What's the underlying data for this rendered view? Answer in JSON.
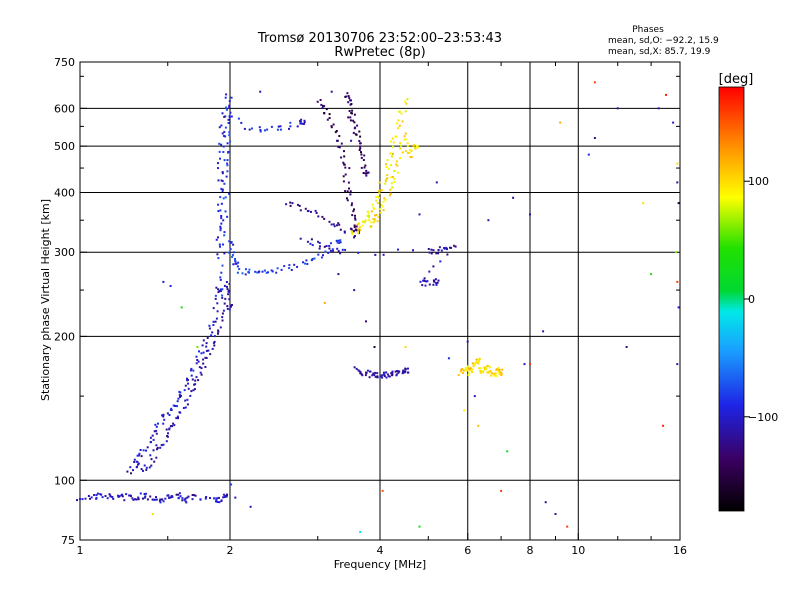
{
  "chart_data": {
    "type": "scatter",
    "title": "Tromsø 20130706 23:52:00–23:53:43",
    "subtitle": "RwPretec (8p)",
    "xlabel": "Frequency [MHz]",
    "ylabel": "Stationary phase Virtual Height [km]",
    "x_scale": "log",
    "y_scale": "log",
    "xlim": [
      1,
      16
    ],
    "ylim": [
      75,
      750
    ],
    "x_ticks": [
      "1",
      "2",
      "4",
      "6",
      "8",
      "10",
      "16"
    ],
    "y_ticks": [
      "75",
      "100",
      "200",
      "300",
      "400",
      "500",
      "600",
      "750"
    ],
    "x_grid": [
      2,
      4,
      6,
      8,
      10
    ],
    "y_grid": [
      100,
      200,
      300,
      400,
      500,
      600
    ],
    "grid": true,
    "info": {
      "heading": "Phases",
      "line1": "mean, sd,O: −92.2, 15.9",
      "line2": "mean, sd,X:  85.7, 19.9"
    },
    "colorbar": {
      "label": "[deg]",
      "range": [
        -180,
        180
      ],
      "ticks": [
        "100",
        "0",
        "−100"
      ],
      "tick_values": [
        100,
        0,
        -100
      ]
    },
    "traces": [
      {
        "phase": -105,
        "points": [
          [
            1.0,
            92
          ],
          [
            1.05,
            92
          ],
          [
            1.1,
            93
          ],
          [
            1.15,
            92
          ],
          [
            1.2,
            93
          ],
          [
            1.25,
            92
          ],
          [
            1.3,
            92
          ],
          [
            1.35,
            93
          ],
          [
            1.4,
            92
          ],
          [
            1.45,
            91
          ],
          [
            1.5,
            92
          ],
          [
            1.55,
            93
          ],
          [
            1.6,
            92
          ],
          [
            1.65,
            91
          ],
          [
            1.7,
            92
          ],
          [
            1.85,
            92
          ],
          [
            1.9,
            91
          ],
          [
            1.95,
            92
          ]
        ]
      },
      {
        "phase": -110,
        "points": [
          [
            1.25,
            104
          ],
          [
            1.3,
            108
          ],
          [
            1.35,
            105
          ],
          [
            1.4,
            112
          ],
          [
            1.45,
            118
          ],
          [
            1.5,
            125
          ],
          [
            1.55,
            132
          ],
          [
            1.6,
            140
          ],
          [
            1.65,
            150
          ],
          [
            1.7,
            160
          ],
          [
            1.75,
            170
          ],
          [
            1.8,
            180
          ],
          [
            1.85,
            195
          ],
          [
            1.9,
            210
          ],
          [
            1.95,
            240
          ],
          [
            1.98,
            260
          ],
          [
            2.0,
            230
          ]
        ]
      },
      {
        "phase": -100,
        "points": [
          [
            1.28,
            110
          ],
          [
            1.33,
            114
          ],
          [
            1.38,
            120
          ],
          [
            1.42,
            128
          ],
          [
            1.47,
            134
          ],
          [
            1.52,
            140
          ],
          [
            1.57,
            148
          ],
          [
            1.62,
            156
          ],
          [
            1.67,
            164
          ],
          [
            1.72,
            176
          ],
          [
            1.77,
            188
          ],
          [
            1.82,
            205
          ],
          [
            1.87,
            220
          ],
          [
            1.9,
            250
          ]
        ]
      },
      {
        "phase": -85,
        "points": [
          [
            1.9,
            240
          ],
          [
            1.92,
            280
          ],
          [
            1.93,
            330
          ],
          [
            1.94,
            380
          ],
          [
            1.95,
            430
          ],
          [
            1.96,
            480
          ],
          [
            1.97,
            540
          ],
          [
            1.98,
            600
          ],
          [
            1.99,
            640
          ],
          [
            2.0,
            320
          ],
          [
            2.02,
            300
          ],
          [
            2.05,
            285
          ],
          [
            2.1,
            275
          ],
          [
            2.2,
            272
          ],
          [
            2.35,
            272
          ],
          [
            2.5,
            275
          ],
          [
            2.7,
            280
          ],
          [
            2.9,
            290
          ],
          [
            3.1,
            300
          ],
          [
            3.3,
            315
          ]
        ]
      },
      {
        "phase": -95,
        "points": [
          [
            1.88,
            300
          ],
          [
            1.9,
            350
          ],
          [
            1.91,
            410
          ],
          [
            1.92,
            470
          ],
          [
            1.93,
            530
          ],
          [
            1.94,
            590
          ],
          [
            2.2,
            540
          ],
          [
            2.4,
            545
          ],
          [
            2.6,
            550
          ],
          [
            2.8,
            560
          ]
        ]
      },
      {
        "phase": -120,
        "points": [
          [
            2.6,
            380
          ],
          [
            2.8,
            370
          ],
          [
            3.0,
            360
          ],
          [
            3.2,
            345
          ],
          [
            3.4,
            335
          ],
          [
            3.6,
            330
          ]
        ]
      },
      {
        "phase": -140,
        "points": [
          [
            3.0,
            620
          ],
          [
            3.1,
            600
          ],
          [
            3.2,
            560
          ],
          [
            3.3,
            520
          ],
          [
            3.35,
            480
          ],
          [
            3.4,
            440
          ],
          [
            3.45,
            400
          ],
          [
            3.5,
            370
          ],
          [
            3.55,
            340
          ],
          [
            3.6,
            320
          ],
          [
            3.4,
            640
          ],
          [
            3.45,
            620
          ],
          [
            3.5,
            590
          ],
          [
            3.55,
            560
          ],
          [
            3.6,
            530
          ],
          [
            3.65,
            500
          ],
          [
            3.7,
            470
          ],
          [
            3.75,
            440
          ]
        ]
      },
      {
        "phase": 95,
        "points": [
          [
            3.5,
            330
          ],
          [
            3.6,
            335
          ],
          [
            3.7,
            345
          ],
          [
            3.8,
            360
          ],
          [
            3.9,
            380
          ],
          [
            4.0,
            400
          ],
          [
            4.1,
            430
          ],
          [
            4.2,
            470
          ],
          [
            4.3,
            520
          ],
          [
            4.4,
            580
          ],
          [
            4.5,
            620
          ],
          [
            3.8,
            340
          ],
          [
            3.9,
            350
          ],
          [
            4.0,
            365
          ],
          [
            4.1,
            385
          ],
          [
            4.2,
            410
          ],
          [
            4.3,
            440
          ],
          [
            4.4,
            480
          ],
          [
            4.5,
            530
          ],
          [
            4.6,
            470
          ],
          [
            4.7,
            500
          ]
        ]
      },
      {
        "phase": -115,
        "points": [
          [
            3.6,
            170
          ],
          [
            3.7,
            168
          ],
          [
            3.8,
            167
          ],
          [
            3.9,
            166
          ],
          [
            4.0,
            166
          ],
          [
            4.1,
            166
          ],
          [
            4.2,
            167
          ],
          [
            4.3,
            168
          ],
          [
            4.4,
            169
          ],
          [
            4.5,
            170
          ]
        ]
      },
      {
        "phase": 100,
        "points": [
          [
            5.8,
            168
          ],
          [
            5.9,
            170
          ],
          [
            6.0,
            172
          ],
          [
            6.1,
            168
          ],
          [
            6.2,
            175
          ],
          [
            6.3,
            180
          ],
          [
            6.4,
            170
          ],
          [
            6.5,
            168
          ],
          [
            6.6,
            172
          ],
          [
            6.7,
            168
          ],
          [
            6.8,
            166
          ],
          [
            6.9,
            170
          ],
          [
            7.0,
            168
          ]
        ]
      },
      {
        "phase": -110,
        "points": [
          [
            2.8,
            320
          ],
          [
            3.0,
            310
          ],
          [
            3.2,
            305
          ],
          [
            3.4,
            300
          ],
          [
            5.0,
            300
          ],
          [
            5.2,
            302
          ],
          [
            5.4,
            305
          ],
          [
            5.6,
            308
          ],
          [
            4.8,
            258
          ],
          [
            5.0,
            258
          ],
          [
            5.2,
            260
          ]
        ]
      }
    ],
    "scatter": [
      {
        "x": 1.47,
        "y": 260,
        "phase": -100
      },
      {
        "x": 1.52,
        "y": 255,
        "phase": -90
      },
      {
        "x": 1.6,
        "y": 230,
        "phase": 30
      },
      {
        "x": 1.72,
        "y": 190,
        "phase": 60
      },
      {
        "x": 2.01,
        "y": 98,
        "phase": -80
      },
      {
        "x": 2.05,
        "y": 92,
        "phase": -110
      },
      {
        "x": 3.55,
        "y": 250,
        "phase": -120
      },
      {
        "x": 3.75,
        "y": 215,
        "phase": -130
      },
      {
        "x": 3.9,
        "y": 190,
        "phase": -150
      },
      {
        "x": 4.05,
        "y": 95,
        "phase": 150
      },
      {
        "x": 3.65,
        "y": 78,
        "phase": -10
      },
      {
        "x": 4.5,
        "y": 190,
        "phase": 100
      },
      {
        "x": 5.5,
        "y": 180,
        "phase": -90
      },
      {
        "x": 6.2,
        "y": 150,
        "phase": -100
      },
      {
        "x": 7.0,
        "y": 95,
        "phase": 160
      },
      {
        "x": 7.8,
        "y": 175,
        "phase": -100
      },
      {
        "x": 8.0,
        "y": 175,
        "phase": 160
      },
      {
        "x": 8.5,
        "y": 205,
        "phase": -110
      },
      {
        "x": 8.6,
        "y": 90,
        "phase": -120
      },
      {
        "x": 9.0,
        "y": 85,
        "phase": -110
      },
      {
        "x": 9.5,
        "y": 80,
        "phase": 160
      },
      {
        "x": 9.2,
        "y": 560,
        "phase": 120
      },
      {
        "x": 10.8,
        "y": 520,
        "phase": -120
      },
      {
        "x": 10.5,
        "y": 480,
        "phase": -90
      },
      {
        "x": 10.8,
        "y": 680,
        "phase": 160
      },
      {
        "x": 12.0,
        "y": 600,
        "phase": -120
      },
      {
        "x": 12.5,
        "y": 190,
        "phase": -120
      },
      {
        "x": 13.5,
        "y": 380,
        "phase": 100
      },
      {
        "x": 14.5,
        "y": 600,
        "phase": -110
      },
      {
        "x": 15.0,
        "y": 640,
        "phase": 170
      },
      {
        "x": 15.5,
        "y": 560,
        "phase": -100
      },
      {
        "x": 15.8,
        "y": 460,
        "phase": 100
      },
      {
        "x": 15.8,
        "y": 420,
        "phase": -120
      },
      {
        "x": 15.9,
        "y": 380,
        "phase": -150
      },
      {
        "x": 15.7,
        "y": 300,
        "phase": 60
      },
      {
        "x": 15.8,
        "y": 260,
        "phase": 160
      },
      {
        "x": 15.9,
        "y": 230,
        "phase": -100
      },
      {
        "x": 15.8,
        "y": 175,
        "phase": -110
      },
      {
        "x": 14.8,
        "y": 130,
        "phase": 170
      },
      {
        "x": 14.0,
        "y": 270,
        "phase": 40
      },
      {
        "x": 8.0,
        "y": 360,
        "phase": -110
      },
      {
        "x": 7.4,
        "y": 390,
        "phase": -120
      },
      {
        "x": 6.6,
        "y": 350,
        "phase": -110
      },
      {
        "x": 5.2,
        "y": 420,
        "phase": -110
      },
      {
        "x": 4.8,
        "y": 360,
        "phase": -110
      },
      {
        "x": 2.3,
        "y": 650,
        "phase": -110
      },
      {
        "x": 3.2,
        "y": 650,
        "phase": -120
      },
      {
        "x": 4.8,
        "y": 80,
        "phase": 30
      },
      {
        "x": 3.1,
        "y": 235,
        "phase": 120
      },
      {
        "x": 3.3,
        "y": 270,
        "phase": -120
      },
      {
        "x": 6.0,
        "y": 195,
        "phase": -110
      },
      {
        "x": 5.9,
        "y": 140,
        "phase": 90
      },
      {
        "x": 6.3,
        "y": 130,
        "phase": 110
      },
      {
        "x": 7.2,
        "y": 115,
        "phase": 20
      },
      {
        "x": 2.2,
        "y": 88,
        "phase": -110
      },
      {
        "x": 1.4,
        "y": 85,
        "phase": 100
      }
    ]
  }
}
